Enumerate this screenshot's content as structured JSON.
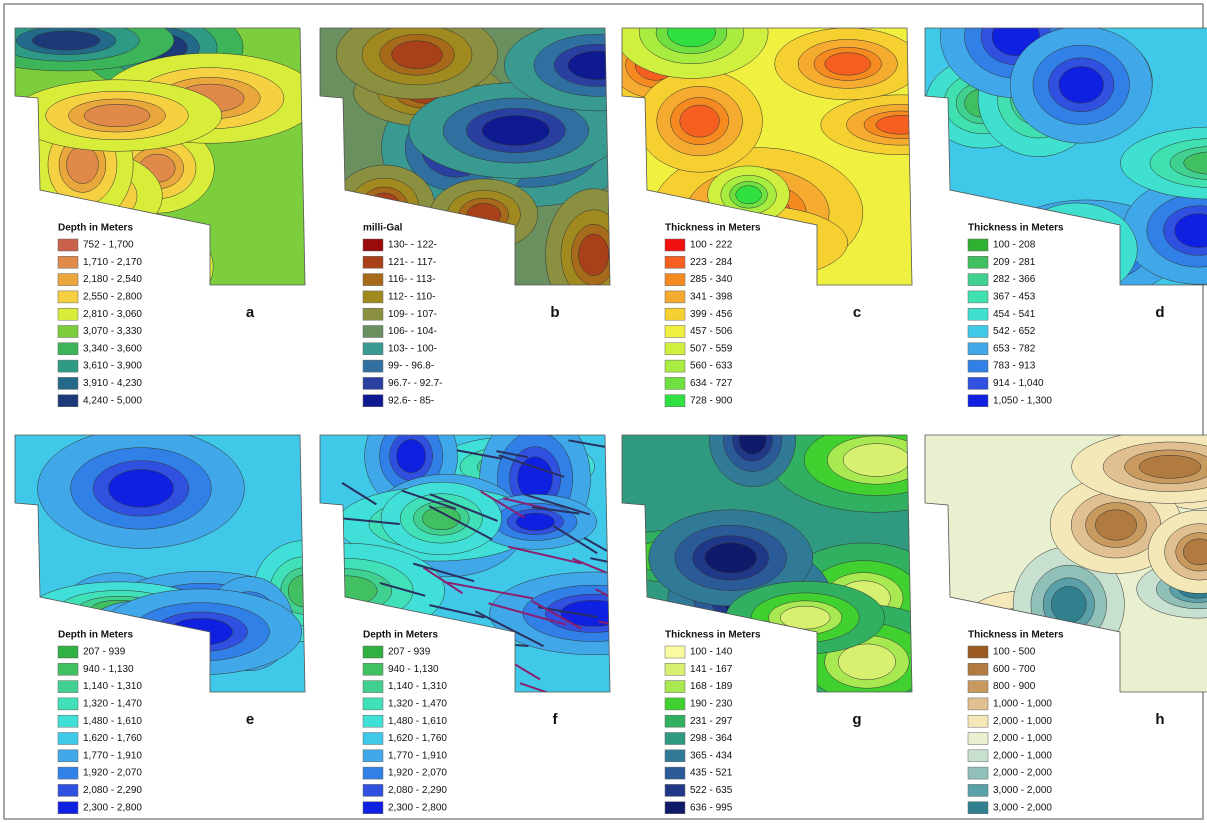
{
  "panels": [
    {
      "letter": "a",
      "legend_title": "Depth in Meters",
      "entries": [
        {
          "label": "752 - 1,700",
          "color": "#c8604a"
        },
        {
          "label": "1,710 - 2,170",
          "color": "#e08a4a"
        },
        {
          "label": "2,180 - 2,540",
          "color": "#eaa83c"
        },
        {
          "label": "2,550 - 2,800",
          "color": "#f5d040"
        },
        {
          "label": "2,810 - 3,060",
          "color": "#d8ec3a"
        },
        {
          "label": "3,070 - 3,330",
          "color": "#7cce3c"
        },
        {
          "label": "3,340 - 3,600",
          "color": "#3cb45a"
        },
        {
          "label": "3,610 - 3,900",
          "color": "#2e9a86"
        },
        {
          "label": "3,910 - 4,230",
          "color": "#236a8a"
        },
        {
          "label": "4,240 - 5,000",
          "color": "#1c3a78"
        }
      ]
    },
    {
      "letter": "b",
      "legend_title": "milli-Gal",
      "entries": [
        {
          "label": "130- - 122-",
          "color": "#9a0a0a"
        },
        {
          "label": "121- - 117-",
          "color": "#a8401a"
        },
        {
          "label": "116- - 113-",
          "color": "#a66a1a"
        },
        {
          "label": "112- - 110-",
          "color": "#a08a20"
        },
        {
          "label": "109- - 107-",
          "color": "#8a9040"
        },
        {
          "label": "106- - 104-",
          "color": "#6a9060"
        },
        {
          "label": "103- - 100-",
          "color": "#389a90"
        },
        {
          "label": "99- - 96.8-",
          "color": "#3070a0"
        },
        {
          "label": "96.7- - 92.7-",
          "color": "#2a40a0"
        },
        {
          "label": "92.6- - 85-",
          "color": "#101a90"
        }
      ]
    },
    {
      "letter": "c",
      "legend_title": "Thickness in Meters",
      "entries": [
        {
          "label": "100 - 222",
          "color": "#f01010"
        },
        {
          "label": "223 - 284",
          "color": "#f56020"
        },
        {
          "label": "285 - 340",
          "color": "#f58a20"
        },
        {
          "label": "341 - 398",
          "color": "#f5aa30"
        },
        {
          "label": "399 - 456",
          "color": "#f5d030"
        },
        {
          "label": "457 - 506",
          "color": "#f0f040"
        },
        {
          "label": "507 - 559",
          "color": "#d0f040"
        },
        {
          "label": "560 - 633",
          "color": "#a8ec40"
        },
        {
          "label": "634 - 727",
          "color": "#70e040"
        },
        {
          "label": "728 - 900",
          "color": "#30e040"
        }
      ]
    },
    {
      "letter": "d",
      "legend_title": "Thickness in Meters",
      "entries": [
        {
          "label": "100 - 208",
          "color": "#30b030"
        },
        {
          "label": "209 - 281",
          "color": "#40c060"
        },
        {
          "label": "282 - 366",
          "color": "#40d090"
        },
        {
          "label": "367 - 453",
          "color": "#40e0b0"
        },
        {
          "label": "454 - 541",
          "color": "#40e0d0"
        },
        {
          "label": "542 - 652",
          "color": "#40c8e8"
        },
        {
          "label": "653 - 782",
          "color": "#40a8e8"
        },
        {
          "label": "783 - 913",
          "color": "#3080e8"
        },
        {
          "label": "914 - 1,040",
          "color": "#3050e0"
        },
        {
          "label": "1,050 - 1,300",
          "color": "#1020e0"
        }
      ]
    },
    {
      "letter": "e",
      "legend_title": "Depth in Meters",
      "entries": [
        {
          "label": "207 - 939",
          "color": "#30b040"
        },
        {
          "label": "940 - 1,130",
          "color": "#40c060"
        },
        {
          "label": "1,140 - 1,310",
          "color": "#40d090"
        },
        {
          "label": "1,320 - 1,470",
          "color": "#40e0b8"
        },
        {
          "label": "1,480 - 1,610",
          "color": "#40e0d8"
        },
        {
          "label": "1,620 - 1,760",
          "color": "#40c8e8"
        },
        {
          "label": "1,770 - 1,910",
          "color": "#40a8e8"
        },
        {
          "label": "1,920 - 2,070",
          "color": "#3080e8"
        },
        {
          "label": "2,080 - 2,290",
          "color": "#3050e0"
        },
        {
          "label": "2,300 - 2,800",
          "color": "#1020e0"
        }
      ]
    },
    {
      "letter": "f",
      "legend_title": "Depth in Meters",
      "entries": [
        {
          "label": "207 - 939",
          "color": "#30b040"
        },
        {
          "label": "940 - 1,130",
          "color": "#40c060"
        },
        {
          "label": "1,140 - 1,310",
          "color": "#40d090"
        },
        {
          "label": "1,320 - 1,470",
          "color": "#40e0b8"
        },
        {
          "label": "1,480 - 1,610",
          "color": "#40e0d8"
        },
        {
          "label": "1,620 - 1,760",
          "color": "#40c8e8"
        },
        {
          "label": "1,770 - 1,910",
          "color": "#40a8e8"
        },
        {
          "label": "1,920 - 2,070",
          "color": "#3080e8"
        },
        {
          "label": "2,080 - 2,290",
          "color": "#3050e0"
        },
        {
          "label": "2,300 - 2,800",
          "color": "#1020e0"
        }
      ]
    },
    {
      "letter": "g",
      "legend_title": "Thickness in Meters",
      "entries": [
        {
          "label": "100 - 140",
          "color": "#fafaa0"
        },
        {
          "label": "141 - 167",
          "color": "#d8f070"
        },
        {
          "label": "168 - 189",
          "color": "#a8e850"
        },
        {
          "label": "190 - 230",
          "color": "#40d030"
        },
        {
          "label": "231 - 297",
          "color": "#30b060"
        },
        {
          "label": "298 - 364",
          "color": "#309a80"
        },
        {
          "label": "365 - 434",
          "color": "#307a98"
        },
        {
          "label": "435 - 521",
          "color": "#2a5a98"
        },
        {
          "label": "522 - 635",
          "color": "#203888"
        },
        {
          "label": "636 - 995",
          "color": "#101a6a"
        }
      ]
    },
    {
      "letter": "h",
      "legend_title": "Thickness in Meters",
      "entries": [
        {
          "label": "100 - 500",
          "color": "#9a5a20"
        },
        {
          "label": "600 - 700",
          "color": "#b07a40"
        },
        {
          "label": "800 - 900",
          "color": "#c89a60"
        },
        {
          "label": "1,000 - 1,000",
          "color": "#e0c090"
        },
        {
          "label": "2,000 - 1,000",
          "color": "#f5e8b8"
        },
        {
          "label": "2,000 - 1,000",
          "color": "#e8f0d0"
        },
        {
          "label": "2,000 - 1,000",
          "color": "#c8e0d0"
        },
        {
          "label": "2,000 - 2,000",
          "color": "#90c0b8"
        },
        {
          "label": "3,000 - 2,000",
          "color": "#5aa0a8"
        },
        {
          "label": "3,000 - 2,000",
          "color": "#308090"
        }
      ]
    }
  ]
}
